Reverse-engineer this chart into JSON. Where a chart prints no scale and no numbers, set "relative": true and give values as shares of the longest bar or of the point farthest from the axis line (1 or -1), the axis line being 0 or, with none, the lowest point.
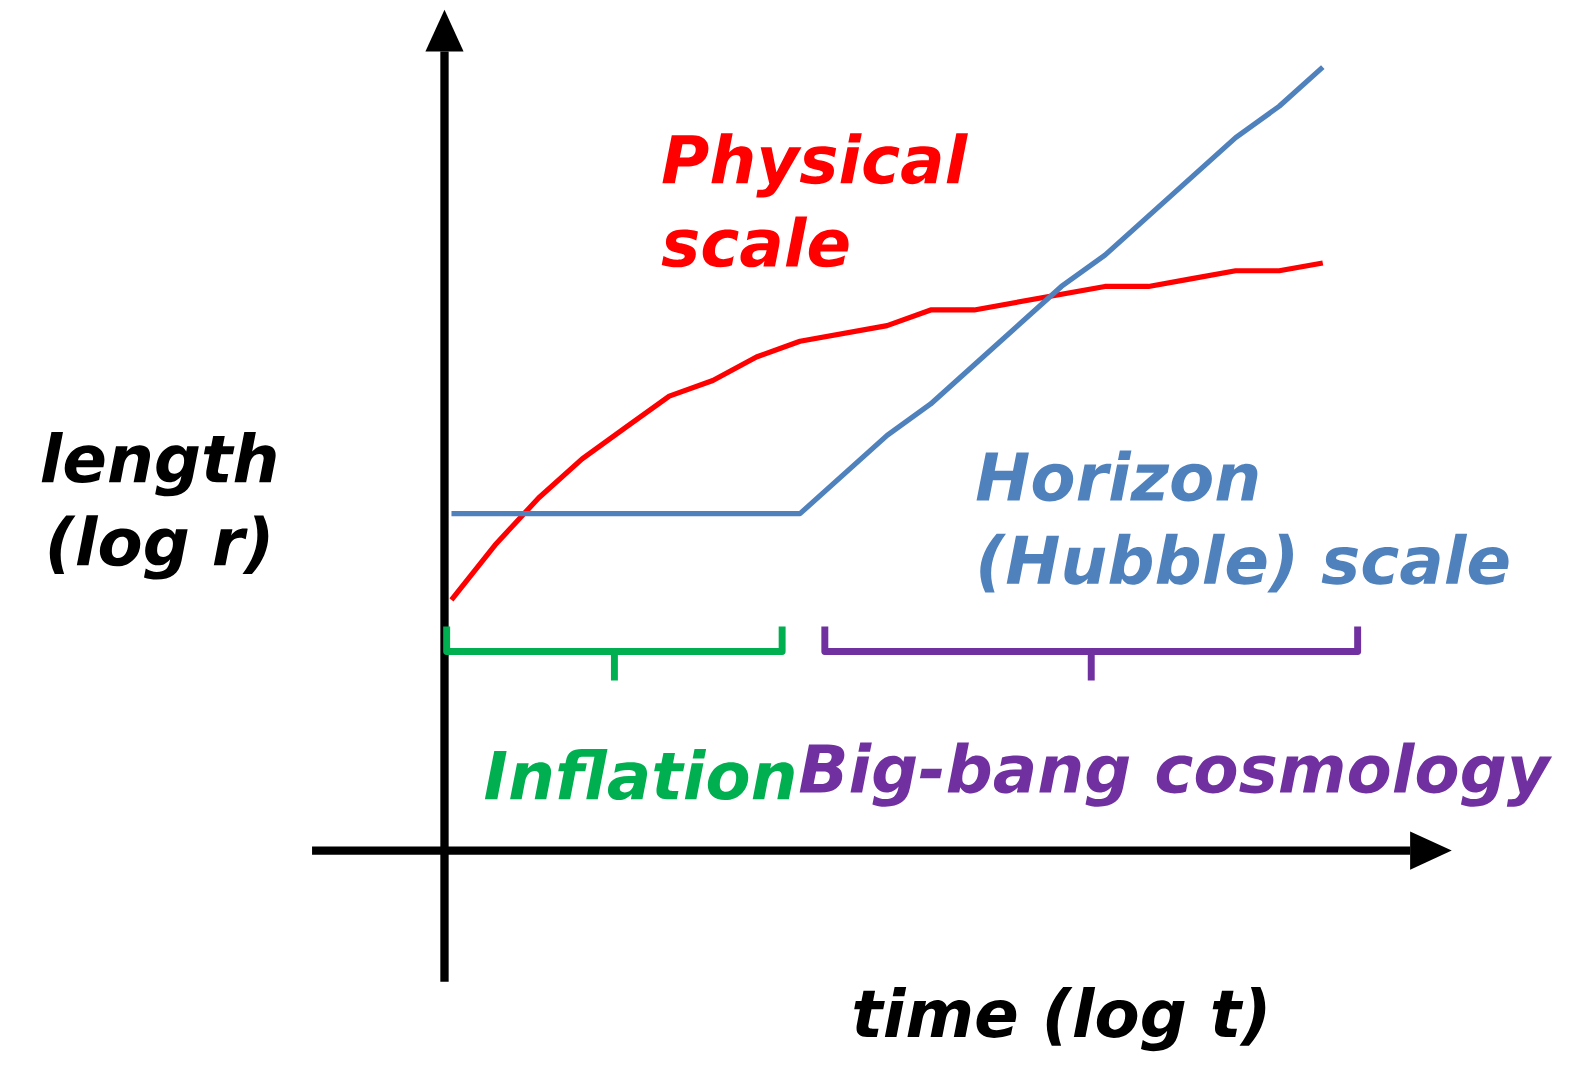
{
  "chart_data": {
    "type": "line",
    "relative": true,
    "xlabel": "time (log t)",
    "ylabel": "length (log r)",
    "categories": [
      null,
      null,
      null,
      null,
      null,
      null,
      null,
      null,
      null,
      null,
      null,
      null,
      null,
      null,
      null,
      null,
      null,
      null,
      null,
      null,
      null
    ],
    "series": [
      {
        "name": "Physical scale",
        "color": "#ff0000",
        "values": [
          0.32,
          0.39,
          0.45,
          0.5,
          0.54,
          0.58,
          0.6,
          0.63,
          0.65,
          0.66,
          0.67,
          0.69,
          0.69,
          0.7,
          0.71,
          0.72,
          0.72,
          0.73,
          0.74,
          0.74,
          0.75
        ]
      },
      {
        "name": "Horizon (Hubble) scale",
        "color": "#4f81bd",
        "values": [
          0.43,
          0.43,
          0.43,
          0.43,
          0.43,
          0.43,
          0.43,
          0.43,
          0.43,
          0.48,
          0.53,
          0.57,
          0.62,
          0.67,
          0.72,
          0.76,
          0.81,
          0.86,
          0.91,
          0.95,
          1.0
        ]
      }
    ],
    "annotations": [
      "Inflation",
      "Big-bang cosmology"
    ]
  }
}
